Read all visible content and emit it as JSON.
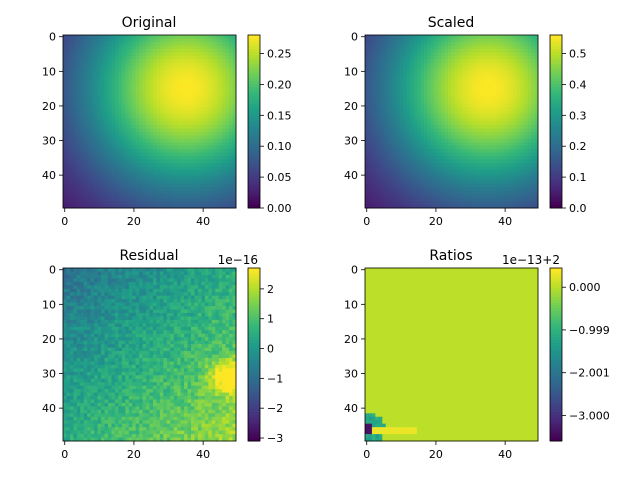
{
  "chart_data": [
    {
      "type": "heatmap",
      "title": "Original",
      "pattern": "gaussian",
      "grid_size": [
        50,
        50
      ],
      "peak": {
        "x": 35,
        "y": 15,
        "value": 0.28
      },
      "xticks": [
        0,
        20,
        40
      ],
      "yticks": [
        0,
        10,
        20,
        30,
        40
      ],
      "xlim": [
        -0.5,
        49.5
      ],
      "ylim": [
        49.5,
        -0.5
      ],
      "colormap": "viridis",
      "colorbar": {
        "range": [
          0.0,
          0.28
        ],
        "ticks": [
          "0.00",
          "0.05",
          "0.10",
          "0.15",
          "0.20",
          "0.25"
        ],
        "tick_values": [
          0,
          0.05,
          0.1,
          0.15,
          0.2,
          0.25
        ],
        "offset_text": ""
      }
    },
    {
      "type": "heatmap",
      "title": "Scaled",
      "pattern": "gaussian",
      "grid_size": [
        50,
        50
      ],
      "peak": {
        "x": 35,
        "y": 15,
        "value": 0.56
      },
      "xticks": [
        0,
        20,
        40
      ],
      "yticks": [
        0,
        10,
        20,
        30,
        40
      ],
      "xlim": [
        -0.5,
        49.5
      ],
      "ylim": [
        49.5,
        -0.5
      ],
      "colormap": "viridis",
      "colorbar": {
        "range": [
          0.0,
          0.56
        ],
        "ticks": [
          "0.0",
          "0.1",
          "0.2",
          "0.3",
          "0.4",
          "0.5"
        ],
        "tick_values": [
          0,
          0.1,
          0.2,
          0.3,
          0.4,
          0.5
        ],
        "offset_text": ""
      }
    },
    {
      "type": "heatmap",
      "title": "Residual",
      "pattern": "noise",
      "grid_size": [
        50,
        50
      ],
      "xticks": [
        0,
        20,
        40
      ],
      "yticks": [
        0,
        10,
        20,
        30,
        40
      ],
      "xlim": [
        -0.5,
        49.5
      ],
      "ylim": [
        49.5,
        -0.5
      ],
      "colormap": "viridis",
      "colorbar": {
        "range": [
          -3.1,
          2.7
        ],
        "ticks": [
          "2",
          "1",
          "0",
          "−1",
          "−2",
          "−3"
        ],
        "tick_values": [
          2,
          1,
          0,
          -1,
          -2,
          -3
        ],
        "offset_text": "1e−16"
      }
    },
    {
      "type": "heatmap",
      "title": "Ratios",
      "pattern": "near-constant",
      "grid_size": [
        50,
        50
      ],
      "xticks": [
        0,
        20,
        40
      ],
      "yticks": [
        0,
        10,
        20,
        30,
        40
      ],
      "xlim": [
        -0.5,
        49.5
      ],
      "ylim": [
        49.5,
        -0.5
      ],
      "colormap": "viridis",
      "colorbar": {
        "range": [
          -3.6,
          0.45
        ],
        "ticks": [
          "0.000",
          "−0.999",
          "−2.001",
          "−3.000"
        ],
        "tick_values": [
          0,
          -0.999,
          -2.001,
          -3.0
        ],
        "offset_text": "1e−13+2"
      }
    }
  ]
}
